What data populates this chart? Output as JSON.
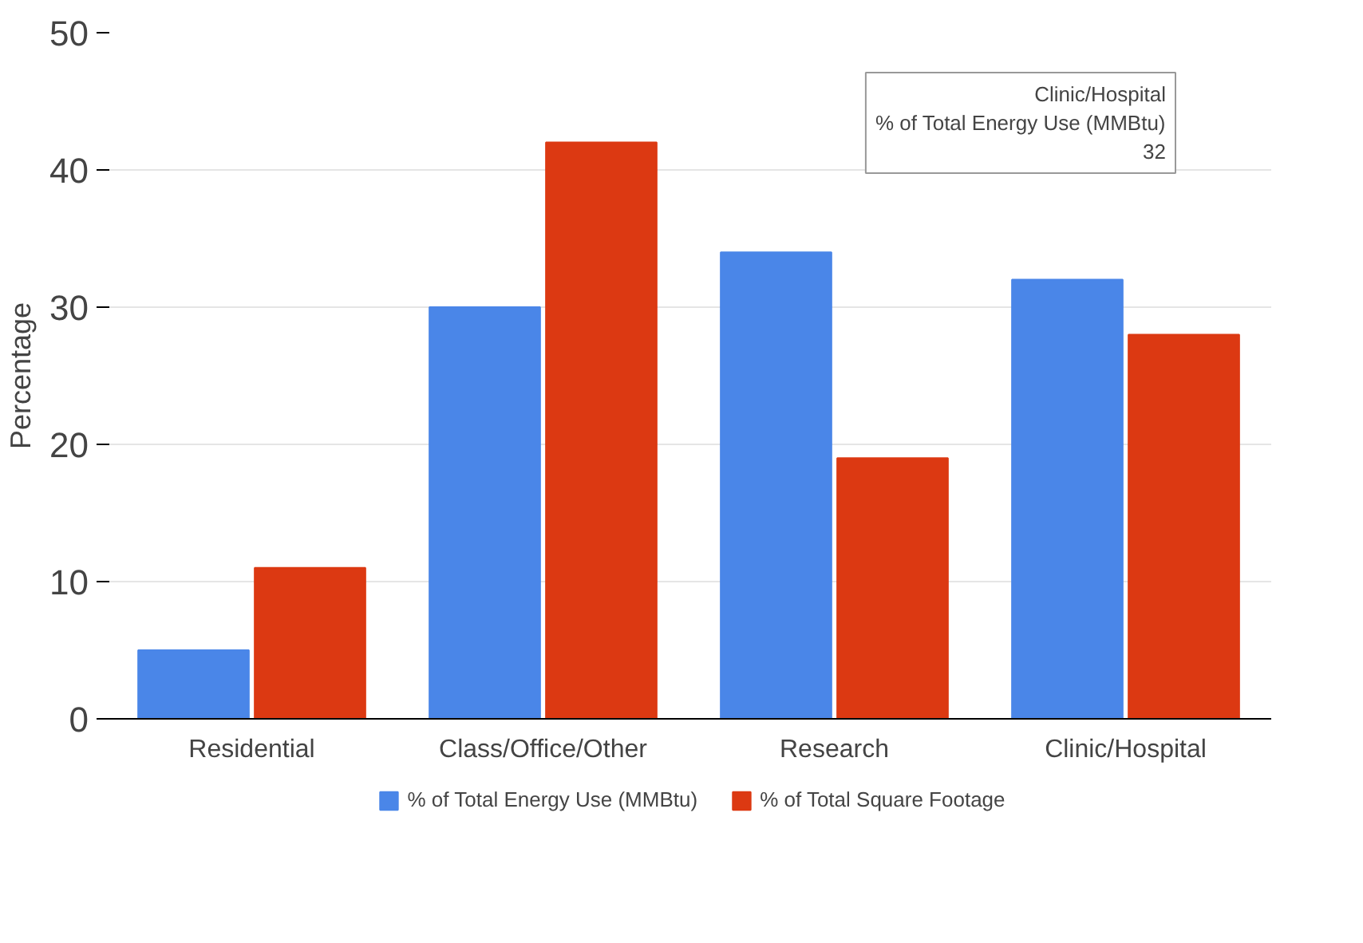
{
  "chart_data": {
    "type": "bar",
    "ylabel": "Percentage",
    "categories": [
      "Residential",
      "Class/Office/Other",
      "Research",
      "Clinic/Hospital"
    ],
    "series": [
      {
        "name": "% of Total Energy Use (MMBtu)",
        "color": "#4a86e8",
        "values": [
          5,
          30,
          34,
          32
        ]
      },
      {
        "name": "% of Total Square Footage",
        "color": "#dc3912",
        "values": [
          11,
          42,
          19,
          28
        ]
      }
    ],
    "ylim": [
      0,
      50
    ],
    "yticks": [
      0,
      10,
      20,
      30,
      40,
      50
    ],
    "grid": "y",
    "legend": "bottom",
    "annotations": [
      "Clinic/Hospital\n% of Total Energy Use (MMBtu)\n32"
    ]
  }
}
